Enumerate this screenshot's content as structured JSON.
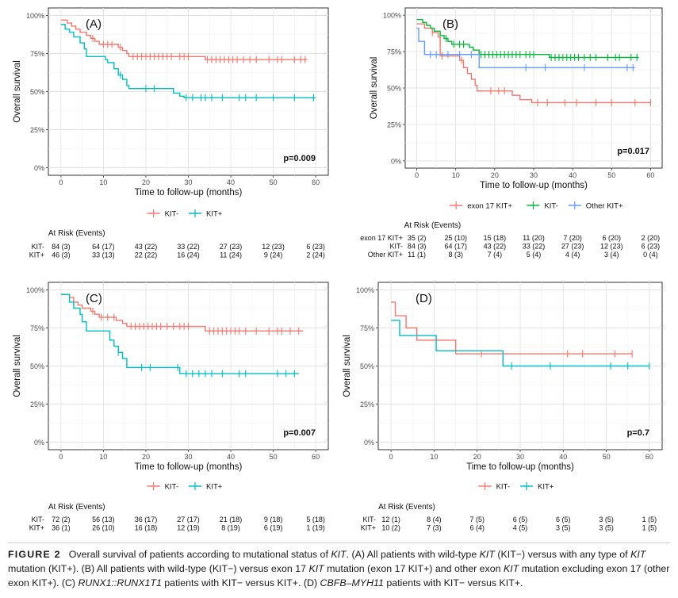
{
  "chart_data": [
    {
      "panel": "(A)",
      "type": "line",
      "subtype": "kaplan-meier",
      "ylabel": "Overall survival",
      "xlabel": "Time to follow-up (months)",
      "xlim": [
        0,
        60
      ],
      "ylim": [
        0,
        1
      ],
      "x_ticks": [
        0,
        10,
        20,
        30,
        40,
        50,
        60
      ],
      "y_tick_labels": [
        "0%",
        "25%",
        "50%",
        "75%",
        "100%"
      ],
      "pvalue": "p=0.009",
      "series": [
        {
          "name": "KIT-",
          "color": "#f8766d",
          "steps": [
            [
              0,
              0.97
            ],
            [
              1.5,
              0.95
            ],
            [
              2.5,
              0.93
            ],
            [
              3.5,
              0.91
            ],
            [
              4.5,
              0.89
            ],
            [
              6,
              0.87
            ],
            [
              7,
              0.85
            ],
            [
              8,
              0.83
            ],
            [
              9,
              0.81
            ],
            [
              13.5,
              0.79
            ],
            [
              14.5,
              0.77
            ],
            [
              15.5,
              0.75
            ],
            [
              16,
              0.73
            ],
            [
              34,
              0.71
            ],
            [
              58,
              0.71
            ]
          ],
          "censor": [
            7.5,
            10,
            11,
            12,
            14,
            17,
            18,
            19,
            20,
            21,
            22,
            23,
            24,
            25,
            26,
            28,
            29,
            30,
            34.5,
            35.5,
            36.5,
            37.5,
            38.5,
            39.5,
            40.5,
            41.5,
            43,
            44.5,
            46,
            49,
            51,
            52,
            55,
            56.5,
            57.5
          ]
        },
        {
          "name": "KIT+",
          "color": "#00bfc4",
          "steps": [
            [
              0,
              0.94
            ],
            [
              1,
              0.91
            ],
            [
              2,
              0.89
            ],
            [
              3,
              0.86
            ],
            [
              4.5,
              0.82
            ],
            [
              5.5,
              0.78
            ],
            [
              6,
              0.73
            ],
            [
              10.5,
              0.71
            ],
            [
              11,
              0.69
            ],
            [
              12.5,
              0.65
            ],
            [
              13.5,
              0.61
            ],
            [
              14.5,
              0.58
            ],
            [
              15.5,
              0.54
            ],
            [
              16,
              0.52
            ],
            [
              26.5,
              0.49
            ],
            [
              28,
              0.47
            ],
            [
              29,
              0.46
            ],
            [
              60,
              0.46
            ]
          ],
          "censor": [
            14,
            20,
            22,
            29.5,
            31,
            33,
            34,
            35.5,
            38,
            42,
            43.5,
            46,
            50,
            55,
            59.5
          ]
        }
      ],
      "legend": [
        "KIT-",
        "KIT+"
      ],
      "risk_table": {
        "title": "At Risk (Events)",
        "rows": [
          {
            "label": "KIT-",
            "values": [
              "84 (3)",
              "64 (17)",
              "43 (22)",
              "33 (22)",
              "27 (23)",
              "12 (23)",
              "6 (23)"
            ]
          },
          {
            "label": "KIT+",
            "values": [
              "46 (3)",
              "33 (13)",
              "22 (22)",
              "16 (24)",
              "11 (24)",
              "9 (24)",
              "2 (24)"
            ]
          }
        ]
      }
    },
    {
      "panel": "(B)",
      "type": "line",
      "subtype": "kaplan-meier",
      "ylabel": "Overall survival",
      "xlabel": "Time to follow-up (months)",
      "xlim": [
        0,
        60
      ],
      "ylim": [
        0,
        1
      ],
      "x_ticks": [
        0,
        10,
        20,
        30,
        40,
        50,
        60
      ],
      "y_tick_labels": [
        "0%",
        "25%",
        "50%",
        "75%",
        "100%"
      ],
      "pvalue": "p=0.017",
      "series": [
        {
          "name": "exon 17 KIT+",
          "color": "#f8766d",
          "steps": [
            [
              0,
              0.94
            ],
            [
              2,
              0.91
            ],
            [
              4,
              0.88
            ],
            [
              5.5,
              0.85
            ],
            [
              6,
              0.72
            ],
            [
              11,
              0.69
            ],
            [
              12,
              0.64
            ],
            [
              13,
              0.6
            ],
            [
              14,
              0.56
            ],
            [
              15,
              0.52
            ],
            [
              15.5,
              0.48
            ],
            [
              24.5,
              0.45
            ],
            [
              26.5,
              0.42
            ],
            [
              29.5,
              0.4
            ],
            [
              60,
              0.4
            ]
          ],
          "censor": [
            4,
            6.5,
            11.5,
            19,
            21,
            22.5,
            31,
            33.5,
            38,
            41,
            46,
            50,
            56,
            60
          ]
        },
        {
          "name": "KIT-",
          "color": "#00ba38",
          "steps": [
            [
              0,
              0.97
            ],
            [
              1.5,
              0.95
            ],
            [
              2.5,
              0.93
            ],
            [
              3.5,
              0.91
            ],
            [
              4.5,
              0.89
            ],
            [
              6,
              0.86
            ],
            [
              7,
              0.84
            ],
            [
              8,
              0.82
            ],
            [
              9,
              0.8
            ],
            [
              13.5,
              0.78
            ],
            [
              14.5,
              0.76
            ],
            [
              16,
              0.73
            ],
            [
              34,
              0.71
            ],
            [
              57,
              0.71
            ]
          ],
          "censor": [
            7.5,
            9.5,
            11,
            12,
            16.5,
            17.5,
            18.5,
            19.5,
            20.5,
            21.5,
            22.5,
            23.5,
            24.5,
            25.5,
            26.5,
            28,
            29,
            30,
            34.5,
            35.5,
            36.5,
            37.5,
            38.5,
            39.5,
            40.5,
            41.5,
            43,
            44.5,
            46,
            49,
            51,
            52,
            55,
            56.5
          ]
        },
        {
          "name": "Other KIT+",
          "color": "#619cff",
          "steps": [
            [
              0,
              0.91
            ],
            [
              0.5,
              0.82
            ],
            [
              2,
              0.73
            ],
            [
              16,
              0.64
            ],
            [
              56,
              0.64
            ]
          ],
          "censor": [
            3.5,
            5,
            8,
            11,
            14,
            28,
            33,
            43,
            54,
            55.5
          ]
        }
      ],
      "legend": [
        "exon 17 KIT+",
        "KIT-",
        "Other KIT+"
      ],
      "risk_table": {
        "title": "At Risk (Events)",
        "rows": [
          {
            "label": "exon 17 KIT+",
            "values": [
              "35 (2)",
              "25 (10)",
              "15 (18)",
              "11 (20)",
              "7 (20)",
              "6 (20)",
              "2 (20)"
            ]
          },
          {
            "label": "KIT-",
            "values": [
              "84 (3)",
              "64 (17)",
              "43 (22)",
              "33 (22)",
              "27 (23)",
              "12 (23)",
              "6 (23)"
            ]
          },
          {
            "label": "Other KIT+",
            "values": [
              "11 (1)",
              "8 (3)",
              "7 (4)",
              "5 (4)",
              "4 (4)",
              "3 (4)",
              "0 (4)"
            ]
          }
        ]
      }
    },
    {
      "panel": "(C)",
      "type": "line",
      "subtype": "kaplan-meier",
      "ylabel": "Overall survival",
      "xlabel": "Time to follow-up (months)",
      "xlim": [
        0,
        60
      ],
      "ylim": [
        0,
        1
      ],
      "x_ticks": [
        0,
        10,
        20,
        30,
        40,
        50,
        60
      ],
      "y_tick_labels": [
        "0%",
        "25%",
        "50%",
        "75%",
        "100%"
      ],
      "pvalue": "p=0.007",
      "series": [
        {
          "name": "KIT-",
          "color": "#f8766d",
          "steps": [
            [
              0,
              0.97
            ],
            [
              2,
              0.95
            ],
            [
              3,
              0.92
            ],
            [
              4,
              0.9
            ],
            [
              5,
              0.88
            ],
            [
              7,
              0.86
            ],
            [
              8,
              0.84
            ],
            [
              9,
              0.82
            ],
            [
              13,
              0.8
            ],
            [
              14.5,
              0.78
            ],
            [
              15.5,
              0.76
            ],
            [
              34,
              0.73
            ],
            [
              57,
              0.73
            ]
          ],
          "censor": [
            7.5,
            9.5,
            11,
            12.5,
            16.5,
            17.5,
            18.5,
            19.5,
            20.5,
            21.5,
            22.5,
            23.5,
            25,
            26.5,
            28,
            29,
            30,
            35,
            36,
            37,
            38,
            39,
            40,
            41,
            42,
            43.5,
            46,
            49,
            51,
            52,
            54,
            56
          ]
        },
        {
          "name": "KIT+",
          "color": "#00bfc4",
          "steps": [
            [
              0,
              0.97
            ],
            [
              2,
              0.92
            ],
            [
              3,
              0.88
            ],
            [
              4.5,
              0.84
            ],
            [
              5,
              0.79
            ],
            [
              6,
              0.73
            ],
            [
              11.5,
              0.67
            ],
            [
              12.5,
              0.63
            ],
            [
              13.5,
              0.59
            ],
            [
              14.5,
              0.55
            ],
            [
              15.5,
              0.49
            ],
            [
              28,
              0.45
            ],
            [
              56,
              0.45
            ]
          ],
          "censor": [
            13.5,
            19,
            21,
            27.5,
            29.5,
            31,
            32.5,
            34,
            35.5,
            38,
            42,
            43.5,
            51,
            53,
            55
          ]
        }
      ],
      "legend": [
        "KIT-",
        "KIT+"
      ],
      "risk_table": {
        "title": "At Risk (Events)",
        "rows": [
          {
            "label": "KIT-",
            "values": [
              "72 (2)",
              "56 (13)",
              "36 (17)",
              "27 (17)",
              "21 (18)",
              "9 (18)",
              "5 (18)"
            ]
          },
          {
            "label": "KIT+",
            "values": [
              "36 (1)",
              "26 (10)",
              "16 (18)",
              "12 (19)",
              "8 (19)",
              "6 (19)",
              "1 (19)"
            ]
          }
        ]
      }
    },
    {
      "panel": "(D)",
      "type": "line",
      "subtype": "kaplan-meier",
      "ylabel": "Overall survival",
      "xlabel": "Time to follow-up (months)",
      "xlim": [
        0,
        60
      ],
      "ylim": [
        0,
        1
      ],
      "x_ticks": [
        0,
        10,
        20,
        30,
        40,
        50,
        60
      ],
      "y_tick_labels": [
        "0%",
        "25%",
        "50%",
        "75%",
        "100%"
      ],
      "pvalue": "p=0.7",
      "series": [
        {
          "name": "KIT-",
          "color": "#f8766d",
          "steps": [
            [
              0,
              0.92
            ],
            [
              1,
              0.83
            ],
            [
              3.5,
              0.75
            ],
            [
              6,
              0.67
            ],
            [
              15,
              0.58
            ],
            [
              56,
              0.58
            ]
          ],
          "censor": [
            21,
            41,
            44.5,
            52,
            56
          ]
        },
        {
          "name": "KIT+",
          "color": "#00bfc4",
          "steps": [
            [
              0,
              0.8
            ],
            [
              2,
              0.7
            ],
            [
              10.5,
              0.6
            ],
            [
              26,
              0.5
            ],
            [
              60,
              0.5
            ]
          ],
          "censor": [
            28,
            37,
            51,
            55,
            60
          ]
        }
      ],
      "legend": [
        "KIT-",
        "KIT+"
      ],
      "risk_table": {
        "title": "At Risk (Events)",
        "rows": [
          {
            "label": "KIT-",
            "values": [
              "12 (1)",
              "8 (4)",
              "7 (5)",
              "6 (5)",
              "6 (5)",
              "3 (5)",
              "1 (5)"
            ]
          },
          {
            "label": "KIT+",
            "values": [
              "10 (2)",
              "7 (3)",
              "6 (4)",
              "4 (5)",
              "3 (5)",
              "3 (5)",
              "1 (5)"
            ]
          }
        ]
      }
    }
  ],
  "caption": {
    "fig_label": "FIGURE 2",
    "text_1": "Overall survival of patients according to mutational status of ",
    "kit_1": "KIT",
    "text_2": ". (A) All patients with wild-type ",
    "kit_2": "KIT",
    "text_3": " (KIT−) versus with any type of ",
    "kit_3": "KIT",
    "text_4": " mutation (KIT+). (B) All patients with wild-type (KIT−) versus exon 17 ",
    "kit_4": "KIT",
    "text_5": " mutation (exon 17 KIT+) and other exon ",
    "kit_5": "KIT",
    "text_6": " mutation excluding exon 17 (other exon KIT+). (C) ",
    "runx": "RUNX1::RUNX1T1",
    "text_7": " patients with KIT− versus KIT+. (D) ",
    "cbfb": "CBFB–MYH11",
    "text_8": " patients with KIT− versus KIT+."
  }
}
